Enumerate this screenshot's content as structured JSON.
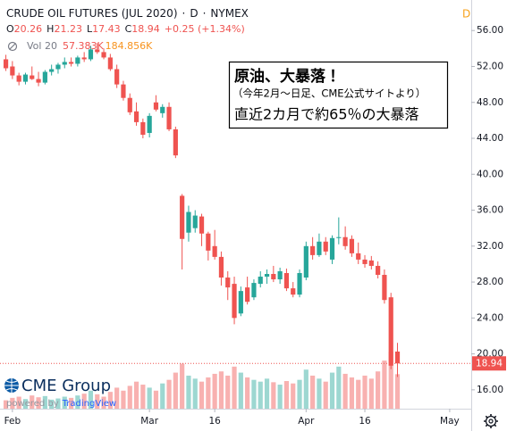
{
  "chart_data": {
    "type": "candlestick",
    "title": "CRUDE OIL FUTURES (JUL 2020)",
    "separator": "·",
    "interval": "D",
    "exchange": "NYMEX",
    "corner_marker": "D",
    "ohlc_legend": [
      {
        "label": "O",
        "value": 20.26
      },
      {
        "label": "H",
        "value": 21.23
      },
      {
        "label": "L",
        "value": 17.43
      },
      {
        "label": "C",
        "value": 18.94
      }
    ],
    "change": "+0.25 (+1.34%)",
    "volume_legend": {
      "label": "Vol 20",
      "values": [
        "57.383K",
        "184.856K"
      ]
    },
    "up_color": "#26a69a",
    "down_color": "#ef5350",
    "open": [
      52.8,
      52.0,
      51.0,
      50.3,
      51.0,
      50.6,
      50.2,
      51.4,
      51.7,
      52.2,
      52.5,
      52.3,
      53.0,
      52.8,
      53.9,
      53.6,
      53.0,
      51.7,
      50.0,
      48.5,
      47.0,
      45.8,
      44.6,
      48.0,
      46.8,
      47.5,
      45.0,
      37.6,
      33.5,
      34.0,
      35.3,
      33.4,
      32.0,
      30.8,
      28.5,
      27.8,
      24.5,
      27.4,
      26.3,
      27.8,
      28.6,
      28.9,
      28.3,
      29.0,
      27.3,
      26.6,
      28.5,
      32.0,
      31.0,
      32.5,
      30.5,
      32.9,
      33.0,
      32.8,
      31.2,
      30.5,
      30.4,
      29.8,
      28.8,
      26.3,
      20.26
    ],
    "high": [
      53.3,
      52.6,
      51.3,
      51.3,
      52.0,
      51.4,
      51.6,
      52.2,
      52.4,
      53.0,
      53.0,
      53.2,
      53.6,
      54.3,
      54.6,
      54.0,
      53.4,
      52.2,
      50.4,
      49.0,
      48.0,
      46.2,
      46.8,
      48.8,
      47.8,
      48.0,
      45.3,
      37.8,
      36.5,
      36.0,
      35.6,
      33.6,
      33.8,
      31.4,
      29.2,
      28.6,
      27.5,
      28.6,
      28.3,
      29.2,
      29.4,
      29.8,
      29.6,
      29.5,
      28.0,
      29.4,
      32.5,
      33.0,
      33.4,
      33.0,
      33.2,
      35.2,
      34.2,
      33.2,
      32.4,
      31.0,
      30.9,
      30.3,
      29.4,
      26.8,
      21.23
    ],
    "low": [
      51.5,
      50.6,
      49.9,
      50.0,
      50.5,
      49.8,
      50.0,
      51.0,
      51.2,
      51.8,
      52.0,
      52.0,
      52.5,
      52.6,
      53.4,
      52.8,
      51.5,
      49.6,
      48.2,
      46.6,
      45.4,
      44.0,
      44.1,
      47.0,
      46.3,
      44.8,
      41.8,
      29.4,
      32.5,
      33.5,
      32.0,
      30.4,
      30.5,
      27.6,
      26.0,
      23.3,
      24.2,
      25.5,
      26.0,
      27.4,
      27.8,
      28.0,
      27.8,
      27.0,
      26.3,
      26.3,
      28.2,
      30.5,
      30.8,
      31.0,
      30.0,
      32.2,
      31.6,
      30.8,
      30.0,
      29.6,
      29.4,
      28.4,
      25.6,
      18.3,
      17.43
    ],
    "close": [
      51.8,
      51.0,
      50.3,
      51.1,
      50.6,
      50.2,
      51.4,
      51.7,
      52.2,
      52.5,
      52.3,
      53.0,
      52.8,
      53.9,
      53.6,
      53.0,
      51.7,
      50.0,
      48.5,
      46.9,
      45.8,
      44.4,
      46.5,
      47.2,
      47.5,
      45.0,
      42.1,
      32.8,
      35.8,
      35.4,
      33.4,
      31.5,
      30.8,
      28.5,
      27.4,
      24.0,
      27.0,
      25.8,
      27.9,
      28.6,
      28.9,
      28.3,
      29.2,
      27.3,
      26.6,
      29.0,
      32.0,
      31.0,
      32.5,
      31.4,
      32.9,
      33.0,
      32.0,
      31.2,
      30.5,
      30.0,
      29.8,
      28.8,
      26.0,
      18.69,
      18.94
    ],
    "volume": [
      14,
      18,
      20,
      16,
      22,
      19,
      21,
      15,
      17,
      20,
      18,
      22,
      25,
      30,
      24,
      20,
      28,
      35,
      30,
      38,
      45,
      40,
      35,
      30,
      42,
      48,
      60,
      75,
      55,
      50,
      45,
      52,
      58,
      62,
      55,
      70,
      60,
      52,
      48,
      45,
      50,
      44,
      40,
      46,
      42,
      48,
      65,
      55,
      50,
      45,
      60,
      70,
      58,
      52,
      48,
      55,
      50,
      62,
      80,
      95,
      57.383
    ],
    "last_price": 18.94,
    "xlim": [
      -0.9,
      71.3
    ],
    "xticks": [
      {
        "value": 1,
        "label": "Feb"
      },
      {
        "value": 22,
        "label": "Mar"
      },
      {
        "value": 32,
        "label": "16"
      },
      {
        "value": 46,
        "label": "Apr"
      },
      {
        "value": 55,
        "label": "16"
      },
      {
        "value": 68,
        "label": "May"
      }
    ],
    "ylim": [
      13.9,
      59.4
    ],
    "yticks": [
      {
        "value": 16,
        "label": "16.00"
      },
      {
        "value": 20,
        "label": "20.00"
      },
      {
        "value": 24,
        "label": "24.00"
      },
      {
        "value": 28,
        "label": "28.00"
      },
      {
        "value": 32,
        "label": "32.00"
      },
      {
        "value": 36,
        "label": "36.00"
      },
      {
        "value": 40,
        "label": "40.00"
      },
      {
        "value": 44,
        "label": "44.00"
      },
      {
        "value": 48,
        "label": "48.00"
      },
      {
        "value": 52,
        "label": "52.00"
      },
      {
        "value": 56,
        "label": "56.00"
      }
    ],
    "grid": false,
    "annotation": [
      "原油、大暴落！",
      "（今年2月～日足、CME公式サイトより）",
      "直近2カ月で約65％の大暴落"
    ],
    "logo": {
      "brand": "CME Group",
      "powered_by": "powered by",
      "platform": "TradingView"
    }
  }
}
